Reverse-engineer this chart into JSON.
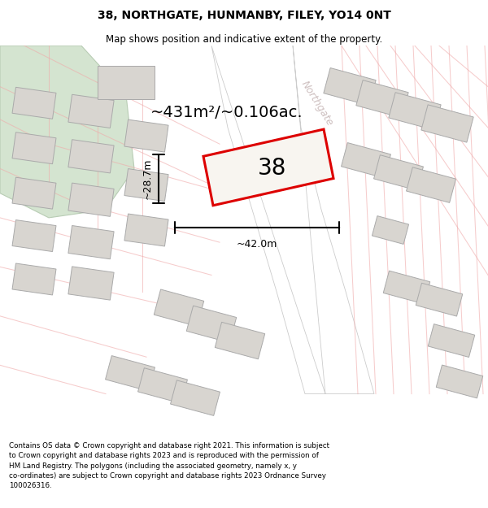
{
  "title": "38, NORTHGATE, HUNMANBY, FILEY, YO14 0NT",
  "subtitle": "Map shows position and indicative extent of the property.",
  "footer_line1": "Contains OS data © Crown copyright and database right 2021. This information is subject",
  "footer_line2": "to Crown copyright and database rights 2023 and is reproduced with the permission of",
  "footer_line3": "HM Land Registry. The polygons (including the associated geometry, namely x, y",
  "footer_line4": "co-ordinates) are subject to Crown copyright and database rights 2023 Ordnance Survey",
  "footer_line5": "100026316.",
  "area_label": "~431m²/~0.106ac.",
  "width_label": "~42.0m",
  "height_label": "~28.7m",
  "property_number": "38",
  "map_bg": "#f2f0eb",
  "road_fill": "#ffffff",
  "road_edge": "#cccccc",
  "building_fill": "#d8d5d0",
  "building_edge": "#aaaaaa",
  "green_fill": "#d4e4d0",
  "green_edge": "#b8ccb4",
  "highlight_edge": "#dd0000",
  "highlight_fill": "#f8f5f0",
  "road_line_color": "#f0aaaa",
  "northgate_color": "#c8b8b8",
  "dim_color": "#000000",
  "title_fontsize": 10,
  "subtitle_fontsize": 8.5,
  "area_fontsize": 14,
  "dim_fontsize": 9,
  "prop_label_fontsize": 20,
  "northgate_fontsize": 9,
  "footer_fontsize": 6.3
}
